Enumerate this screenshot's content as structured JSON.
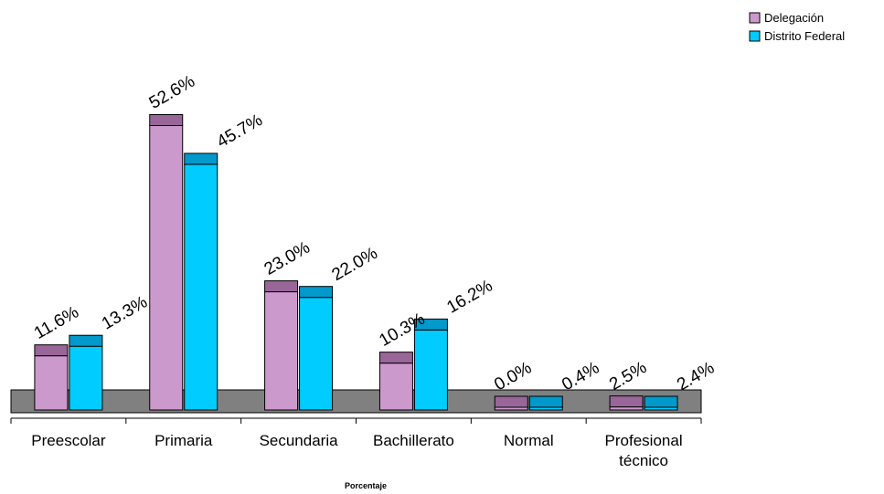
{
  "chart_data": {
    "type": "bar",
    "title": "",
    "xlabel": "Porcentaje",
    "ylabel": "",
    "categories": [
      [
        "Preescolar"
      ],
      [
        "Primaria"
      ],
      [
        "Secundaria"
      ],
      [
        "Bachillerato"
      ],
      [
        "Normal"
      ],
      [
        "Profesional",
        "técnico"
      ]
    ],
    "series": [
      {
        "name": "Delegación",
        "color": "#cc99cc",
        "top_color": "#996699",
        "values": [
          11.6,
          52.6,
          23.0,
          10.3,
          0.0,
          2.5
        ],
        "labels": [
          "11.6%",
          "52.6%",
          "23.0%",
          "10.3%",
          "0.0%",
          "2.5%"
        ]
      },
      {
        "name": "Distrito Federal",
        "color": "#00ccff",
        "top_color": "#0099cc",
        "values": [
          13.3,
          45.7,
          22.0,
          16.2,
          0.4,
          2.4
        ],
        "labels": [
          "13.3%",
          "45.7%",
          "22.0%",
          "16.2%",
          "0.4%",
          "2.4%"
        ]
      }
    ],
    "ylim": [
      0,
      60
    ],
    "floor_color": "#808080",
    "grid": false,
    "legend_position": "top-right"
  }
}
